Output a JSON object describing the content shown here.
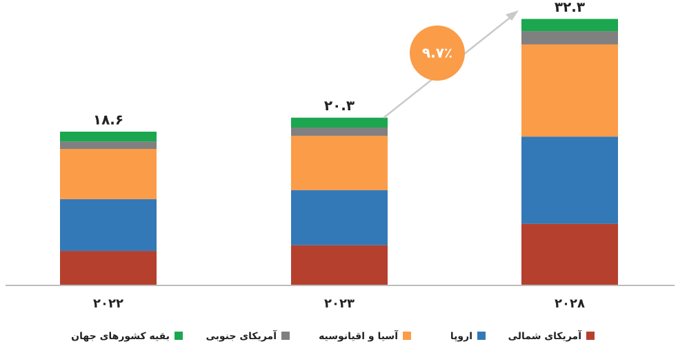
{
  "chart_data": {
    "type": "stacked_bar",
    "categories": [
      "۲۰۲۲",
      "۲۰۲۳",
      "۲۰۲۸"
    ],
    "series": [
      {
        "name": "آمریکای شمالی",
        "color": "#b5402e",
        "values": [
          4.1,
          4.8,
          7.4
        ]
      },
      {
        "name": "اروپا",
        "color": "#3479b7",
        "values": [
          6.3,
          6.7,
          10.6
        ]
      },
      {
        "name": "آسیا و اقیانوسیه",
        "color": "#fb9c48",
        "values": [
          6.1,
          6.6,
          11.2
        ]
      },
      {
        "name": "آمریکای جنوبی",
        "color": "#808080",
        "values": [
          0.9,
          1.0,
          1.6
        ]
      },
      {
        "name": "بقیه کشورهای جهان",
        "color": "#1ba64f",
        "values": [
          1.2,
          1.2,
          1.5
        ]
      }
    ],
    "totals": {
      "values": [
        18.6,
        20.3,
        32.3
      ],
      "value_labels": [
        "۱۸.۶",
        "۲۰.۳",
        "۳۲.۳"
      ]
    },
    "annotation": "۹.۷٪",
    "ylim": [
      0,
      34.6
    ]
  }
}
